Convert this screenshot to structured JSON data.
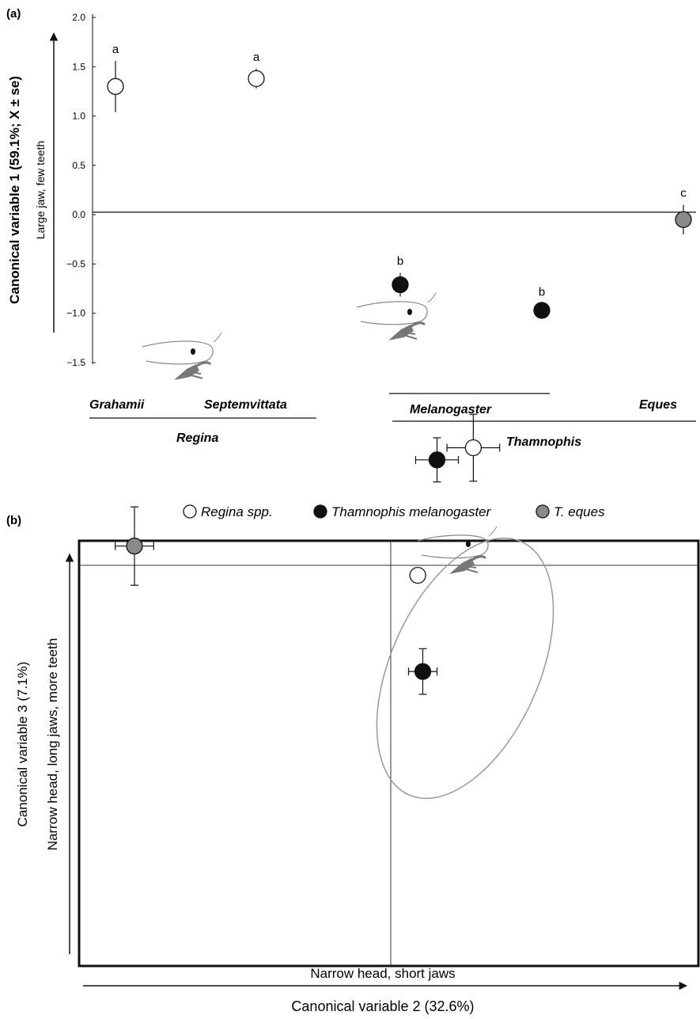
{
  "panel_a_label": "(a)",
  "panel_b_label": "(b)",
  "chart_data": [
    {
      "type": "scatter",
      "panel": "(a)",
      "ylabel": "Canonical variable 1 (59.1%; X ± se)",
      "ylabel_sub": "Large jaw, few teeth",
      "ylim": [
        -1.5,
        2.0
      ],
      "yticks": [
        "2.0",
        "1.5",
        "1.0",
        "0.5",
        "0.0",
        "−0.5",
        "−1.0",
        "−1.5"
      ],
      "ytick_values": [
        2.0,
        1.5,
        1.0,
        0.5,
        0.0,
        -0.5,
        -1.0,
        -1.5
      ],
      "zero_line": true,
      "points": [
        {
          "x": 1,
          "y": 1.3,
          "se": 0.26,
          "fill": "#ffffff",
          "letter": "a"
        },
        {
          "x": 2,
          "y": 1.38,
          "se": 0.1,
          "fill": "#ffffff",
          "letter": "a"
        },
        {
          "x": 3,
          "y": -0.71,
          "se": 0.12,
          "fill": "#111111",
          "letter": "b"
        },
        {
          "x": 4,
          "y": -0.97,
          "se": 0.07,
          "fill": "#111111",
          "letter": "b"
        },
        {
          "x": 5,
          "y": -0.05,
          "se": 0.15,
          "fill": "#8a8a8a",
          "letter": "c"
        }
      ],
      "group_labels": {
        "grahamii": "Grahamii",
        "septemvittata": "Septemvittata",
        "melanogaster": "Melanogaster",
        "eques": "Eques",
        "regina": "Regina",
        "thamnophis": "Thamnophis"
      }
    },
    {
      "type": "scatter",
      "panel": "(b)",
      "xlabel": "Canonical variable 2 (32.6%)",
      "xlabel_sub": "Narrow head, short jaws",
      "ylabel": "Canonical variable 3 (7.1%)",
      "ylabel_sub": "Narrow head, long jaws, more teeth",
      "legend": [
        {
          "label": "Regina spp.",
          "fill": "#ffffff"
        },
        {
          "label": "Thamnophis melanogaster",
          "fill": "#111111"
        },
        {
          "label": "T. eques",
          "fill": "#8a8a8a"
        }
      ],
      "grid": false,
      "points": [
        {
          "x": -3.6,
          "y": 0.27,
          "xerr": 0.27,
          "yerr": 0.55,
          "fill": "#8a8a8a"
        },
        {
          "x": 0.65,
          "y": 1.48,
          "xerr": 0.3,
          "yerr": 0.31,
          "fill": "#111111"
        },
        {
          "x": 1.16,
          "y": 1.65,
          "xerr": 0.37,
          "yerr": 0.47,
          "fill": "#ffffff"
        },
        {
          "x": 0.38,
          "y": -0.14,
          "xerr": 0.05,
          "yerr": 0.08,
          "fill": "#ffffff"
        },
        {
          "x": 0.45,
          "y": -1.49,
          "xerr": 0.2,
          "yerr": 0.32,
          "fill": "#111111"
        }
      ]
    }
  ]
}
